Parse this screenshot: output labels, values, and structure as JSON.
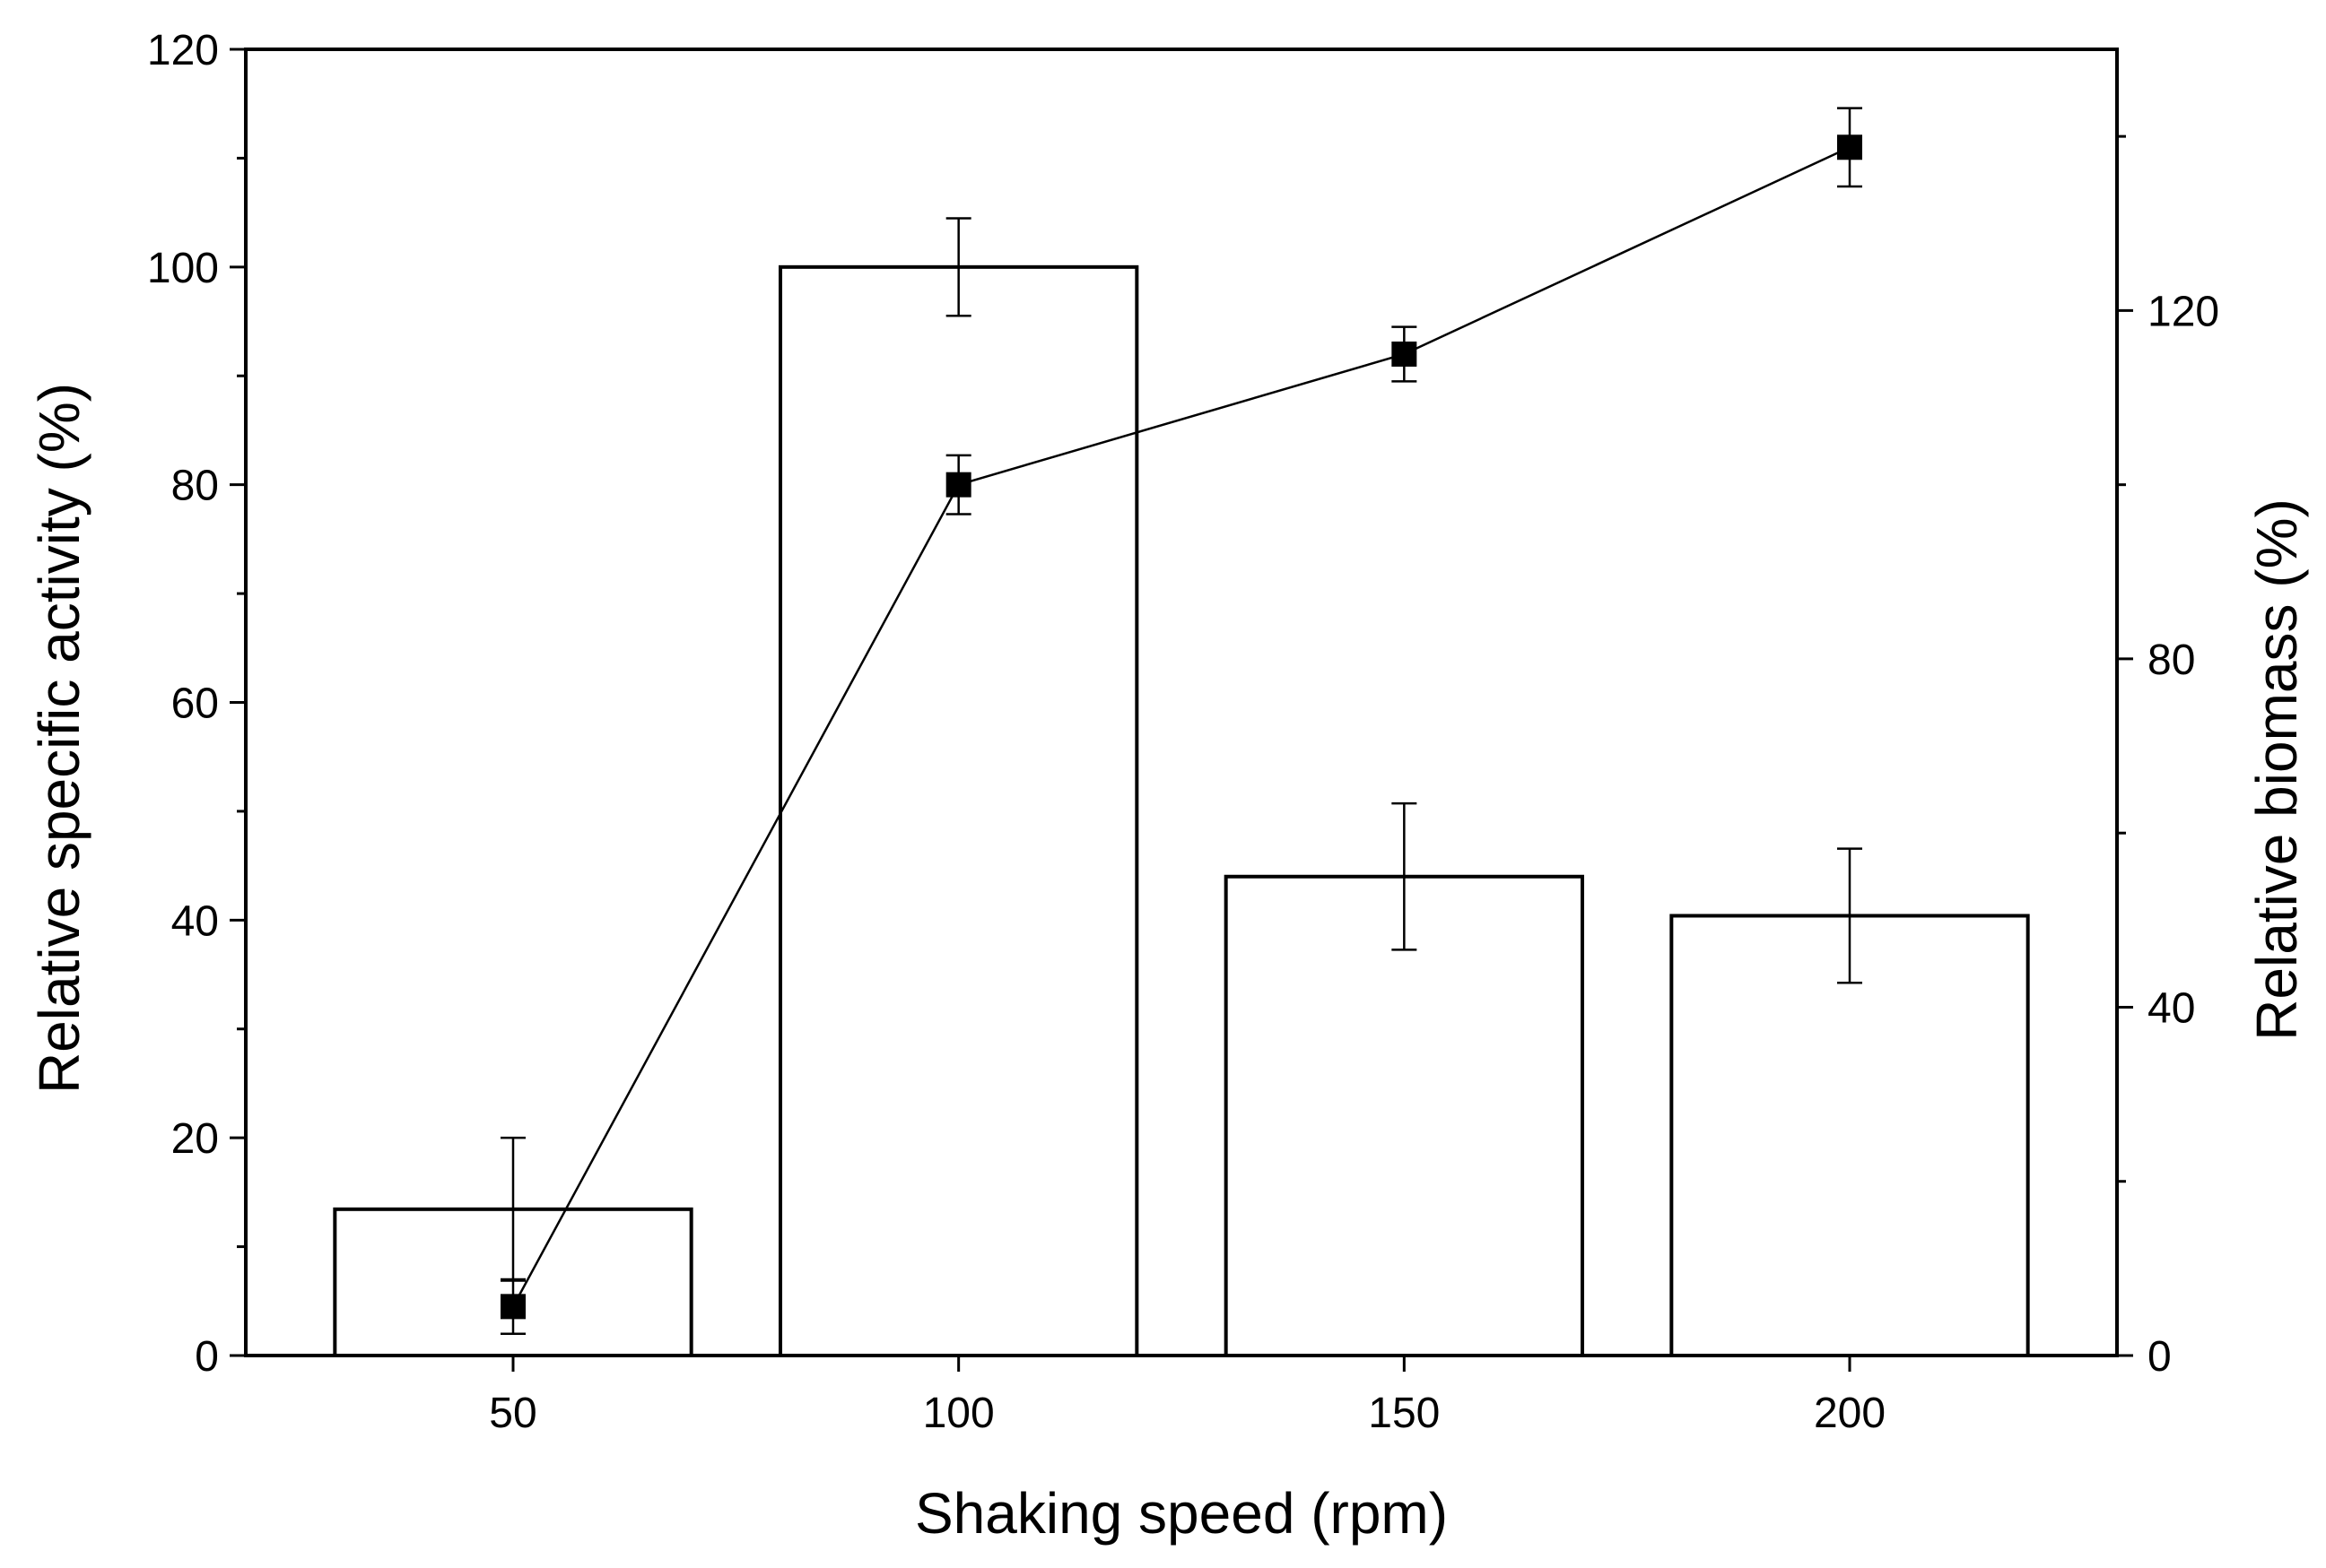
{
  "chart_data": {
    "type": "bar+line",
    "x_categories": [
      50,
      100,
      150,
      200
    ],
    "xlabel": "Shaking speed (rpm)",
    "xlim": [
      20,
      230
    ],
    "x_ticks": [
      50,
      100,
      150,
      200
    ],
    "bar_half_width": 20,
    "left_axis": {
      "label": "Relative specific activity (%)",
      "ylim": [
        0,
        120
      ],
      "ticks": [
        0,
        20,
        40,
        60,
        80,
        100,
        120
      ],
      "minor_step": 10
    },
    "right_axis": {
      "label": "Relative biomass (%)",
      "ylim": [
        0,
        150
      ],
      "ticks": [
        0,
        40,
        80,
        120
      ],
      "minor_step": 20
    },
    "series": [
      {
        "name": "Relative biomass",
        "kind": "bar",
        "axis": "right",
        "x": [
          50,
          100,
          150,
          200
        ],
        "values": [
          16.8,
          125,
          55,
          50.5
        ],
        "errors": [
          8.2,
          5.6,
          8.4,
          7.7
        ]
      },
      {
        "name": "Relative specific activity",
        "kind": "line",
        "marker": "square",
        "axis": "left",
        "x": [
          50,
          100,
          150,
          200
        ],
        "values": [
          4.5,
          80,
          92,
          111
        ],
        "errors": [
          2.5,
          2.7,
          2.5,
          3.6
        ]
      }
    ]
  }
}
